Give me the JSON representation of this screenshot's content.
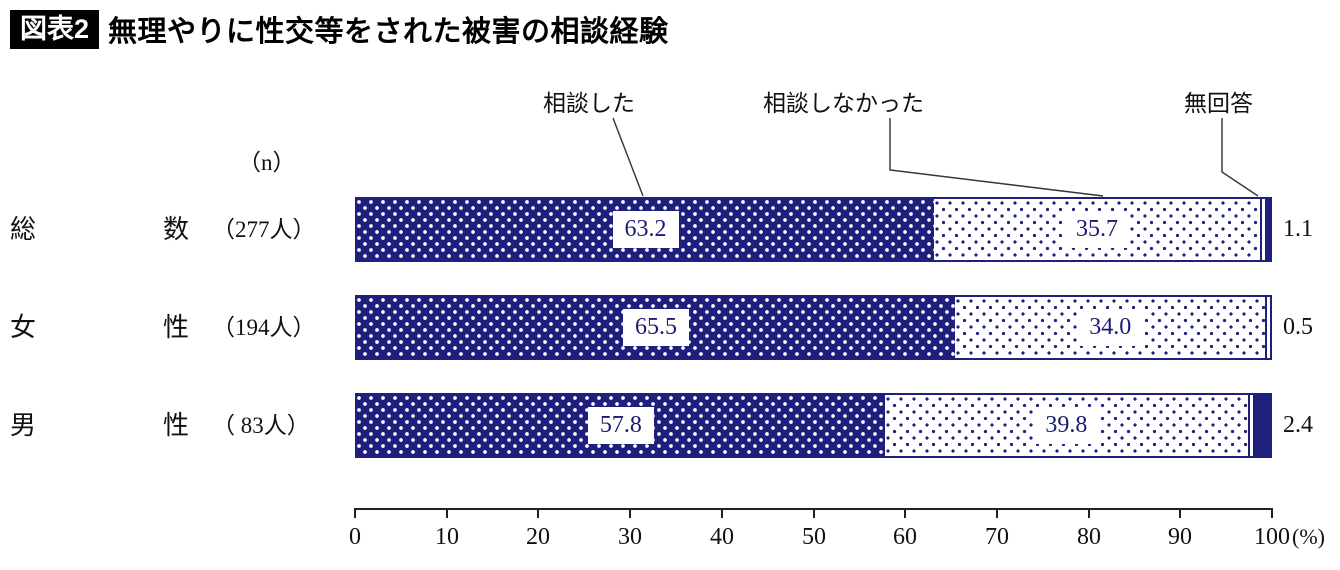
{
  "header": {
    "badge": "図表2",
    "title": "無理やりに性交等をされた被害の相談経験"
  },
  "chart_data": {
    "type": "bar",
    "orientation": "horizontal",
    "stacked": true,
    "title": "無理やりに性交等をされた被害の相談経験",
    "n_header": "（n）",
    "legend": [
      "相談した",
      "相談しなかった",
      "無回答"
    ],
    "legend_position": "top",
    "xlim": [
      0,
      100
    ],
    "x_ticks": [
      "0",
      "10",
      "20",
      "30",
      "40",
      "50",
      "60",
      "70",
      "80",
      "90",
      "100"
    ],
    "x_unit": "(%)",
    "grid": false,
    "categories": [
      "総数",
      "女性",
      "男性"
    ],
    "series": [
      {
        "name": "相談した",
        "values": [
          63.2,
          65.5,
          57.8
        ]
      },
      {
        "name": "相談しなかった",
        "values": [
          35.7,
          34.0,
          39.8
        ]
      },
      {
        "name": "無回答",
        "values": [
          1.1,
          0.5,
          2.4
        ]
      }
    ],
    "rows": [
      {
        "category_chars": [
          "総",
          "数"
        ],
        "category": "総数",
        "n": "（277人）",
        "consulted": "63.2",
        "not_consulted": "35.7",
        "no_answer": "1.1"
      },
      {
        "category_chars": [
          "女",
          "性"
        ],
        "category": "女性",
        "n": "（194人）",
        "consulted": "65.5",
        "not_consulted": "34.0",
        "no_answer": "0.5"
      },
      {
        "category_chars": [
          "男",
          "性"
        ],
        "category": "男性",
        "n": "（ 83人）",
        "consulted": "57.8",
        "not_consulted": "39.8",
        "no_answer": "2.4"
      }
    ],
    "colors": {
      "navy": "#1f1f7d",
      "axis": "#222222",
      "background": "#ffffff"
    }
  }
}
